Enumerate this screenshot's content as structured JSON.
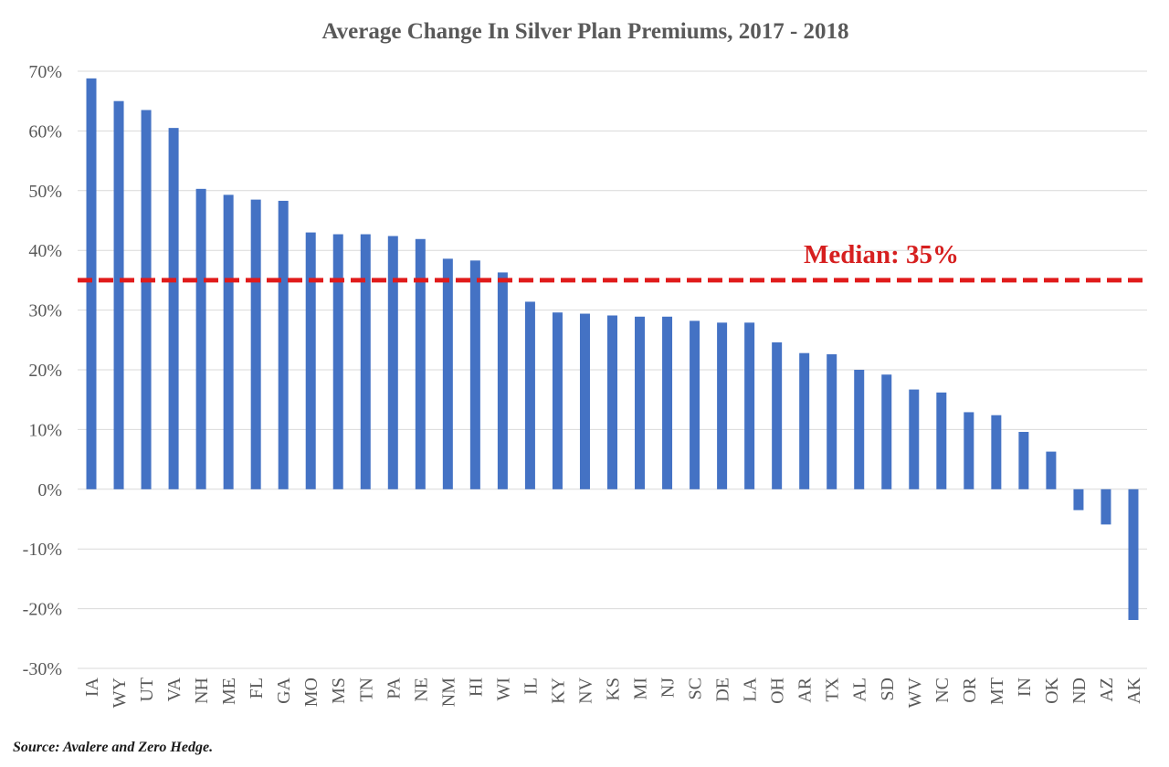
{
  "chart_data": {
    "type": "bar",
    "title": "Average Change In Silver Plan Premiums, 2017 - 2018",
    "categories": [
      "IA",
      "WY",
      "UT",
      "VA",
      "NH",
      "ME",
      "FL",
      "GA",
      "MO",
      "MS",
      "TN",
      "PA",
      "NE",
      "NM",
      "HI",
      "WI",
      "IL",
      "KY",
      "NV",
      "KS",
      "MI",
      "NJ",
      "SC",
      "DE",
      "LA",
      "OH",
      "AR",
      "TX",
      "AL",
      "SD",
      "WV",
      "NC",
      "OR",
      "MT",
      "IN",
      "OK",
      "ND",
      "AZ",
      "AK"
    ],
    "values": [
      68.8,
      65.0,
      63.5,
      60.5,
      50.3,
      49.3,
      48.5,
      48.3,
      43.0,
      42.7,
      42.7,
      42.4,
      41.9,
      38.6,
      38.3,
      36.3,
      31.4,
      29.6,
      29.4,
      29.1,
      28.9,
      28.9,
      28.2,
      27.9,
      27.9,
      24.6,
      22.8,
      22.6,
      20.0,
      19.2,
      16.7,
      16.2,
      12.9,
      12.4,
      9.6,
      6.3,
      -3.5,
      -5.9,
      -21.9
    ],
    "ylim": [
      -30,
      70
    ],
    "yticks": [
      "70%",
      "60%",
      "50%",
      "40%",
      "30%",
      "20%",
      "10%",
      "0%",
      "-10%",
      "-20%",
      "-30%"
    ],
    "grid": true,
    "bar_color": "#4472c4",
    "median": {
      "value": 35,
      "label": "Median: 35%",
      "color": "#e01b1b"
    },
    "source": "Source: Avalere and Zero Hedge."
  }
}
